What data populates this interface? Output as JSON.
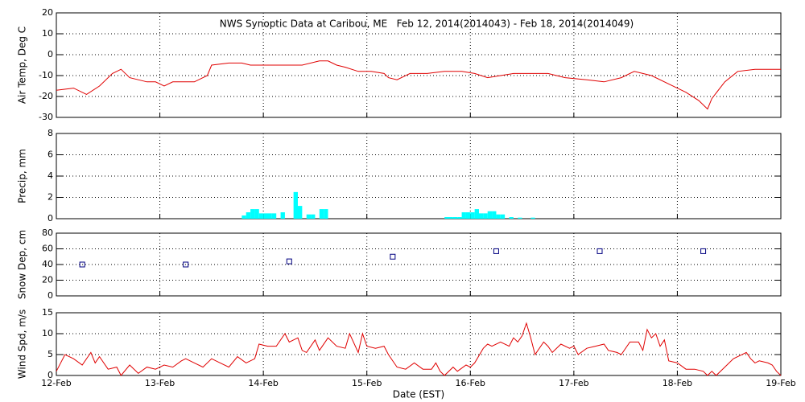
{
  "chart_data": [
    {
      "type": "line",
      "title": "NWS Synoptic Data at Caribou, ME   Feb 12, 2014(2014043) - Feb 18, 2014(2014049)",
      "ylabel": "Air Temp, Deg C",
      "color": "#e00000",
      "x": [
        0,
        4,
        7,
        10,
        13,
        15,
        17,
        21,
        23,
        25,
        27,
        32,
        35,
        36,
        40,
        43,
        45,
        49,
        57,
        61,
        63,
        65,
        67,
        70,
        73,
        76,
        77,
        79,
        82,
        86,
        90,
        94,
        97,
        100,
        103,
        106,
        114,
        118,
        123,
        127,
        131,
        134,
        138,
        142,
        146,
        149,
        151,
        152,
        155,
        158,
        162,
        168
      ],
      "values": [
        -17,
        -16,
        -19,
        -15,
        -9,
        -7,
        -11,
        -13,
        -13,
        -15,
        -13,
        -13,
        -10,
        -5,
        -4,
        -4,
        -5,
        -5,
        -5,
        -3,
        -3,
        -5,
        -6,
        -8,
        -8,
        -9,
        -11,
        -12,
        -9,
        -9,
        -8,
        -8,
        -9,
        -11,
        -10,
        -9,
        -9,
        -11,
        -12,
        -13,
        -11,
        -8,
        -10,
        -14,
        -18,
        -22,
        -26,
        -21,
        -13,
        -8,
        -7,
        -7
      ],
      "xlim": [
        0,
        168
      ],
      "xticks": [
        0,
        24,
        48,
        72,
        96,
        120,
        144,
        168
      ],
      "ylim": [
        -30,
        20
      ],
      "yticks": [
        -30,
        -20,
        -10,
        0,
        10,
        20
      ],
      "grid": true
    },
    {
      "type": "bar",
      "ylabel": "Precip, mm",
      "color": "#00ffff",
      "x": [
        43,
        44,
        45,
        46,
        47,
        48,
        49,
        50,
        52,
        55,
        56,
        58,
        59,
        61,
        62,
        90,
        91,
        92,
        93,
        94,
        95,
        96,
        97,
        98,
        99,
        100,
        101,
        102,
        103,
        105,
        107,
        110
      ],
      "values": [
        0.3,
        0.6,
        0.9,
        0.9,
        0.5,
        0.5,
        0.5,
        0.5,
        0.6,
        2.5,
        1.2,
        0.4,
        0.4,
        0.9,
        0.9,
        0.15,
        0.15,
        0.15,
        0.15,
        0.6,
        0.6,
        0.6,
        0.9,
        0.5,
        0.5,
        0.7,
        0.7,
        0.4,
        0.4,
        0.15,
        0.1,
        0.1
      ],
      "xlim": [
        0,
        168
      ],
      "xticks": [
        0,
        24,
        48,
        72,
        96,
        120,
        144,
        168
      ],
      "ylim": [
        0,
        8
      ],
      "yticks": [
        0,
        2,
        4,
        6,
        8
      ],
      "grid": true
    },
    {
      "type": "scatter",
      "ylabel": "Snow Dep, cm",
      "color": "#000080",
      "x": [
        6,
        30,
        54,
        78,
        102,
        126,
        150
      ],
      "values": [
        40,
        40,
        44,
        50,
        57,
        57,
        57
      ],
      "xlim": [
        0,
        168
      ],
      "xticks": [
        0,
        24,
        48,
        72,
        96,
        120,
        144,
        168
      ],
      "ylim": [
        0,
        80
      ],
      "yticks": [
        0,
        20,
        40,
        60,
        80
      ],
      "grid": true
    },
    {
      "type": "line",
      "ylabel": "Wind Spd, m/s",
      "xlabel": "Date (EST)",
      "color": "#e00000",
      "x": [
        0,
        2,
        4,
        6,
        8,
        9,
        10,
        12,
        14,
        15,
        17,
        19,
        21,
        23,
        25,
        27,
        29,
        30,
        32,
        34,
        36,
        38,
        40,
        42,
        44,
        46,
        47,
        49,
        51,
        53,
        54,
        56,
        57,
        58,
        60,
        61,
        63,
        65,
        67,
        68,
        70,
        71,
        72,
        74,
        76,
        77,
        79,
        81,
        83,
        85,
        87,
        88,
        89,
        90,
        92,
        93,
        95,
        96,
        97,
        99,
        100,
        101,
        103,
        105,
        106,
        107,
        108,
        109,
        110,
        111,
        113,
        114,
        115,
        117,
        119,
        120,
        121,
        123,
        125,
        127,
        128,
        130,
        131,
        133,
        135,
        136,
        137,
        138,
        139,
        140,
        141,
        142,
        144,
        146,
        148,
        150,
        151,
        152,
        153,
        155,
        157,
        158,
        160,
        161,
        162,
        163,
        165,
        166,
        167,
        168
      ],
      "values": [
        1,
        5,
        4,
        2.5,
        5.5,
        3,
        4.5,
        1.5,
        2,
        0,
        2.5,
        0.5,
        2,
        1.5,
        2.5,
        2,
        3.5,
        4,
        3,
        2,
        4,
        3,
        2,
        4.5,
        3,
        4,
        7.5,
        7,
        7,
        10,
        8,
        9,
        6,
        5.5,
        8.5,
        6,
        9,
        7,
        6.5,
        10,
        5.5,
        10,
        7,
        6.5,
        7,
        5,
        2,
        1.5,
        3,
        1.5,
        1.5,
        3,
        1,
        0,
        2,
        1,
        2.5,
        2,
        3,
        6.5,
        7.5,
        7,
        8,
        7,
        9,
        8,
        9.5,
        12.5,
        9,
        5,
        8,
        7,
        5.5,
        7.5,
        6.5,
        7,
        5,
        6.5,
        7,
        7.5,
        6,
        5.5,
        5,
        8,
        8,
        6,
        11,
        9,
        10,
        7,
        8.5,
        3.5,
        3,
        1.5,
        1.5,
        1,
        0,
        1,
        0,
        2,
        4,
        4.5,
        5.5,
        4,
        3,
        3.5,
        3,
        2.5,
        1,
        0
      ],
      "xlim": [
        0,
        168
      ],
      "xticks": [
        {
          "value": 0,
          "label": "12-Feb"
        },
        {
          "value": 24,
          "label": "13-Feb"
        },
        {
          "value": 48,
          "label": "14-Feb"
        },
        {
          "value": 72,
          "label": "15-Feb"
        },
        {
          "value": 96,
          "label": "16-Feb"
        },
        {
          "value": 120,
          "label": "17-Feb"
        },
        {
          "value": 144,
          "label": "18-Feb"
        },
        {
          "value": 168,
          "label": "19-Feb"
        }
      ],
      "ylim": [
        0,
        15
      ],
      "yticks": [
        0,
        5,
        10,
        15
      ],
      "grid": true
    }
  ]
}
